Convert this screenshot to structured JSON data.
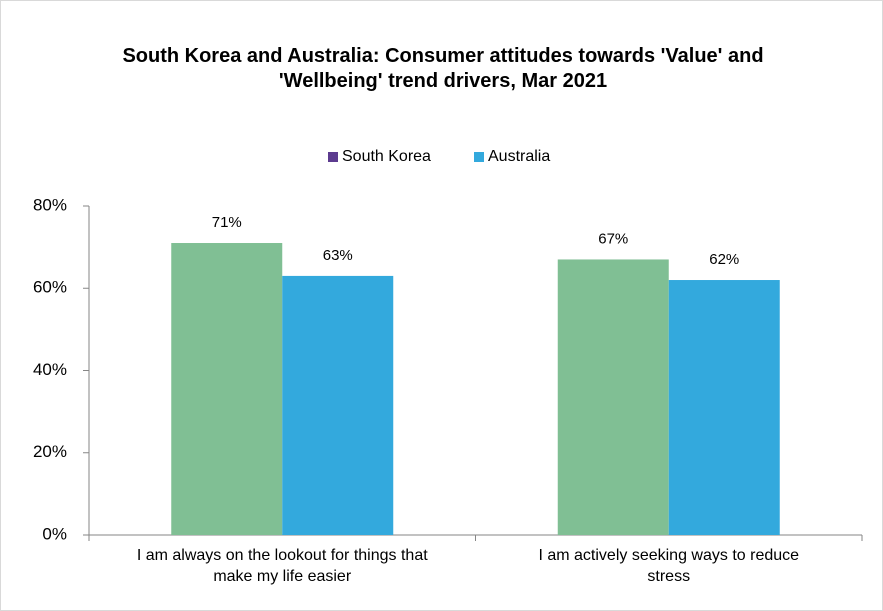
{
  "chart_data": {
    "type": "bar",
    "title": "South Korea and Australia: Consumer attitudes towards 'Value' and 'Wellbeing' trend drivers, Mar 2021",
    "categories": [
      "I am always on the lookout for things that make my life easier",
      "I am actively seeking ways to reduce stress"
    ],
    "series": [
      {
        "name": "South Korea",
        "color": "#80bf94",
        "legend_color": "#5c3b8f",
        "values": [
          71,
          67
        ],
        "value_labels": [
          "71%",
          "67%"
        ]
      },
      {
        "name": "Australia",
        "color": "#33a9dd",
        "legend_color": "#33a9dd",
        "values": [
          63,
          62
        ],
        "value_labels": [
          "63%",
          "62%"
        ]
      }
    ],
    "ylim": [
      0,
      80
    ],
    "yticks": [
      {
        "value": 0,
        "label": "0%"
      },
      {
        "value": 20,
        "label": "20%"
      },
      {
        "value": 40,
        "label": "40%"
      },
      {
        "value": 60,
        "label": "60%"
      },
      {
        "value": 80,
        "label": "80%"
      }
    ],
    "grid": false,
    "legend": "top"
  }
}
